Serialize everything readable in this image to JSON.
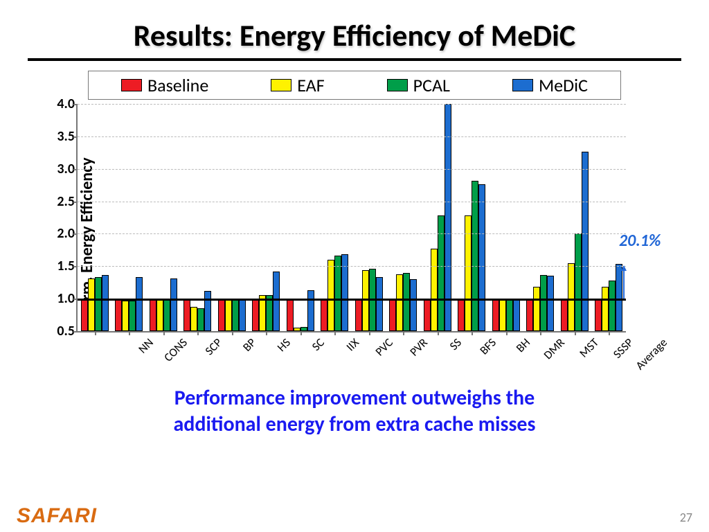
{
  "title": "Results: Energy Efficiency of MeDiC",
  "legend": [
    {
      "label": "Baseline",
      "color": "#ed1c24"
    },
    {
      "label": "EAF",
      "color": "#fff200"
    },
    {
      "label": "PCAL",
      "color": "#009e49"
    },
    {
      "label": "MeDiC",
      "color": "#1c6dd0"
    }
  ],
  "axis": {
    "ylabel": "Norm. Energy Efficiency",
    "ymin": 0.5,
    "ymax": 4.0,
    "ystep": 0.5,
    "baseline_at": 1.0,
    "tick_format": 1,
    "grid_color": "#bbbbbb"
  },
  "annotation": {
    "text": "20.1%",
    "color": "#2166d6",
    "font_size": 24,
    "target_category": "Average",
    "from_value": 1.0,
    "to_value": 1.5
  },
  "chart": {
    "type": "bar",
    "categories": [
      "NN",
      "CONS",
      "SCP",
      "BP",
      "HS",
      "SC",
      "IIX",
      "PVC",
      "PVR",
      "SS",
      "BFS",
      "BH",
      "DMR",
      "MST",
      "SSSP",
      "Average"
    ],
    "series": [
      {
        "name": "Baseline",
        "color": "#ed1c24",
        "values": [
          1.0,
          1.0,
          1.0,
          1.0,
          1.0,
          1.0,
          1.0,
          1.0,
          1.0,
          1.0,
          1.0,
          1.0,
          1.0,
          1.0,
          1.0,
          1.0
        ]
      },
      {
        "name": "EAF",
        "color": "#fff200",
        "values": [
          1.31,
          0.97,
          1.0,
          0.87,
          0.99,
          1.05,
          0.55,
          1.6,
          1.44,
          1.38,
          1.77,
          2.28,
          1.0,
          1.18,
          1.55,
          1.18
        ]
      },
      {
        "name": "PCAL",
        "color": "#009e49",
        "values": [
          1.33,
          0.97,
          1.0,
          0.85,
          0.99,
          1.05,
          0.56,
          1.66,
          1.46,
          1.4,
          2.28,
          2.82,
          1.0,
          1.36,
          2.0,
          1.28
        ]
      },
      {
        "name": "MeDiC",
        "color": "#1c6dd0",
        "values": [
          1.36,
          1.33,
          1.31,
          1.12,
          0.99,
          1.42,
          1.13,
          1.68,
          1.33,
          1.3,
          4.0,
          2.76,
          1.0,
          1.35,
          3.26,
          1.53
        ]
      }
    ]
  },
  "caption_line1": "Performance improvement outweighs the",
  "caption_line2": "additional energy from extra cache misses",
  "footer_logo": "SAFARI",
  "slide_number": "27"
}
